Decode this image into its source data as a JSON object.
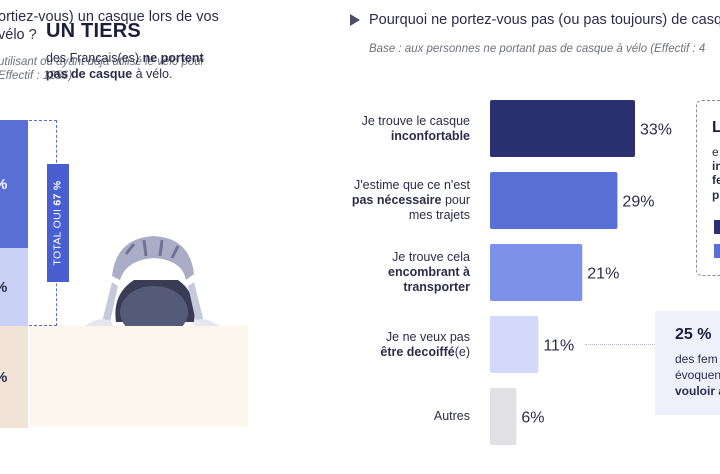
{
  "left": {
    "question": "ortiez-vous) un casque lors de vos vélo ?",
    "base": "utilisant ou ayant déjà utilisé le vélo pour Effectif : 1256)",
    "stack_values": [
      "%",
      "%",
      "%"
    ],
    "total_label_prefix": "TOTAL OUI ",
    "total_label_value": "67 %",
    "tiers_title": "UN TIERS",
    "tiers_text_1": "des Français(es) ",
    "tiers_text_bold": "ne portent pas de casque",
    "tiers_text_2": " à vélo.",
    "colors": {
      "oui_fort": "#5a6fd6",
      "oui_parfois": "#c9d1f6",
      "non": "#f1e4d6"
    }
  },
  "right": {
    "question": "Pourquoi ne portez-vous pas (ou pas toujours) de casque",
    "base": "Base : aux personnes ne portant pas de casque à vélo (Effectif : 4"
  },
  "chart_data": {
    "type": "bar",
    "orientation": "horizontal",
    "categories": [
      "Je trouve le casque inconfortable",
      "J'estime que ce n'est pas nécessaire pour mes trajets",
      "Je trouve cela encombrant à transporter",
      "Je ne veux pas être decoiffé(e)",
      "Autres"
    ],
    "label_parts": [
      [
        {
          "t": "Je trouve le casque",
          "b": false
        },
        {
          "t": "inconfortable",
          "b": true
        }
      ],
      [
        {
          "t": "J'estime que ce n'est",
          "b": false
        },
        {
          "t": "pas nécessaire",
          "b": true,
          "tail": " pour"
        },
        {
          "t": "mes trajets",
          "b": false
        }
      ],
      [
        {
          "t": "Je trouve cela",
          "b": false
        },
        {
          "t": "encombrant à",
          "b": true
        },
        {
          "t": "transporter",
          "b": true
        }
      ],
      [
        {
          "t": "Je ne veux pas",
          "b": false
        },
        {
          "t": "être decoiffé",
          "b": true,
          "tail": "(e)"
        }
      ],
      [
        {
          "t": "Autres",
          "b": false
        }
      ]
    ],
    "values": [
      33,
      29,
      21,
      11,
      6
    ],
    "value_labels": [
      "33%",
      "29%",
      "21%",
      "11%",
      "6%"
    ],
    "colors": [
      "#2b3170",
      "#5a6fd6",
      "#7d90ea",
      "#d3daf9",
      "#e1e1e5"
    ],
    "xlim": [
      0,
      33
    ]
  },
  "callout_top": {
    "title": "L",
    "fragments": [
      "e",
      "in",
      "fe",
      "p"
    ]
  },
  "callout_bottom": {
    "pct": "25 %",
    "lines": [
      "des fem",
      "évoquen",
      "vouloir a"
    ]
  }
}
